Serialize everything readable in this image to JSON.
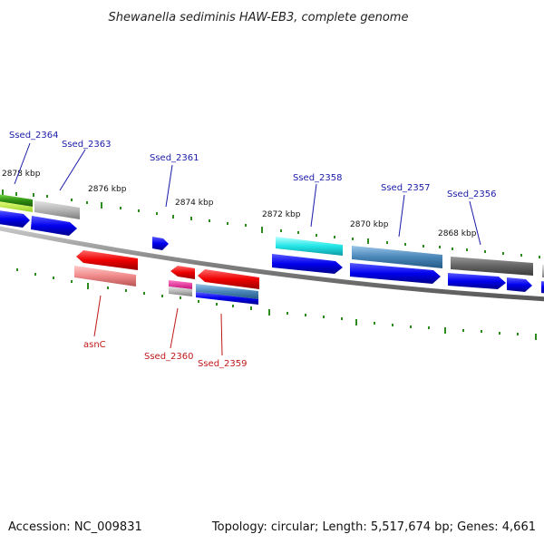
{
  "title": "Shewanella sediminis HAW-EB3, complete genome",
  "footer": {
    "accession": "Accession: NC_009831",
    "summary": "Topology: circular; Length: 5,517,674 bp; Genes: 4,661"
  },
  "kbp_labels": [
    "2878 kbp",
    "2876 kbp",
    "2874 kbp",
    "2872 kbp",
    "2870 kbp",
    "2868 kbp"
  ],
  "gene_labels": {
    "top": [
      "Ssed_2364",
      "Ssed_2363",
      "Ssed_2361",
      "Ssed_2358",
      "Ssed_2357",
      "Ssed_2356"
    ],
    "bottom": [
      "asnC",
      "Ssed_2360",
      "Ssed_2359"
    ]
  },
  "colors": {
    "forward_label": "#1a1aa8",
    "reverse_label": "#c01818",
    "backbone": "#7a7a7a",
    "tick": "#2e8b1e",
    "cds_forward": "#0000ee",
    "cds_reverse": "#ee0000"
  }
}
